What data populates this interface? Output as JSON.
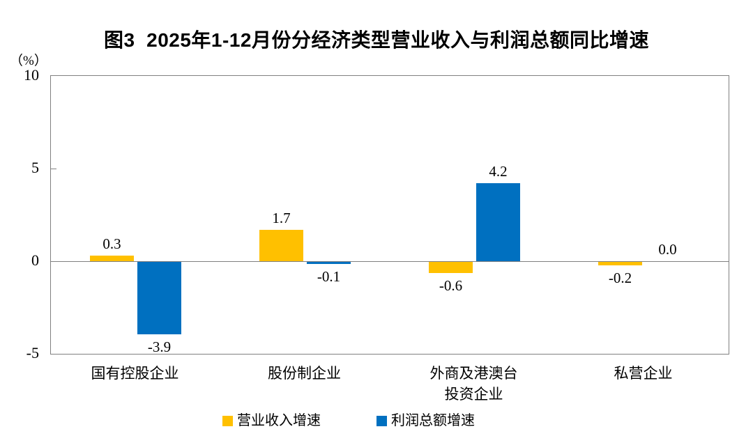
{
  "chart_data": {
    "type": "bar",
    "title": "图3  2025年1-12月份分经济类型营业收入与利润总额同比增速",
    "unit_label": "（%）",
    "categories": [
      "国有控股企业",
      "股份制企业",
      "外商及港澳台\n投资企业",
      "私营企业"
    ],
    "series": [
      {
        "name": "营业收入增速",
        "color": "#FFC000",
        "values": [
          0.3,
          1.7,
          -0.6,
          -0.2
        ]
      },
      {
        "name": "利润总额增速",
        "color": "#0070C0",
        "values": [
          -3.9,
          -0.1,
          4.2,
          0.0
        ]
      }
    ],
    "data_labels": [
      [
        "0.3",
        "1.7",
        "-0.6",
        "-0.2"
      ],
      [
        "-3.9",
        "-0.1",
        "4.2",
        "0.0"
      ]
    ],
    "yticks": [
      10,
      5,
      0,
      -5
    ],
    "ylim": [
      -5,
      10
    ],
    "grid": false,
    "legend_position": "bottom",
    "axis_color": "#808080",
    "text_color": "#000000",
    "background": "#ffffff"
  }
}
